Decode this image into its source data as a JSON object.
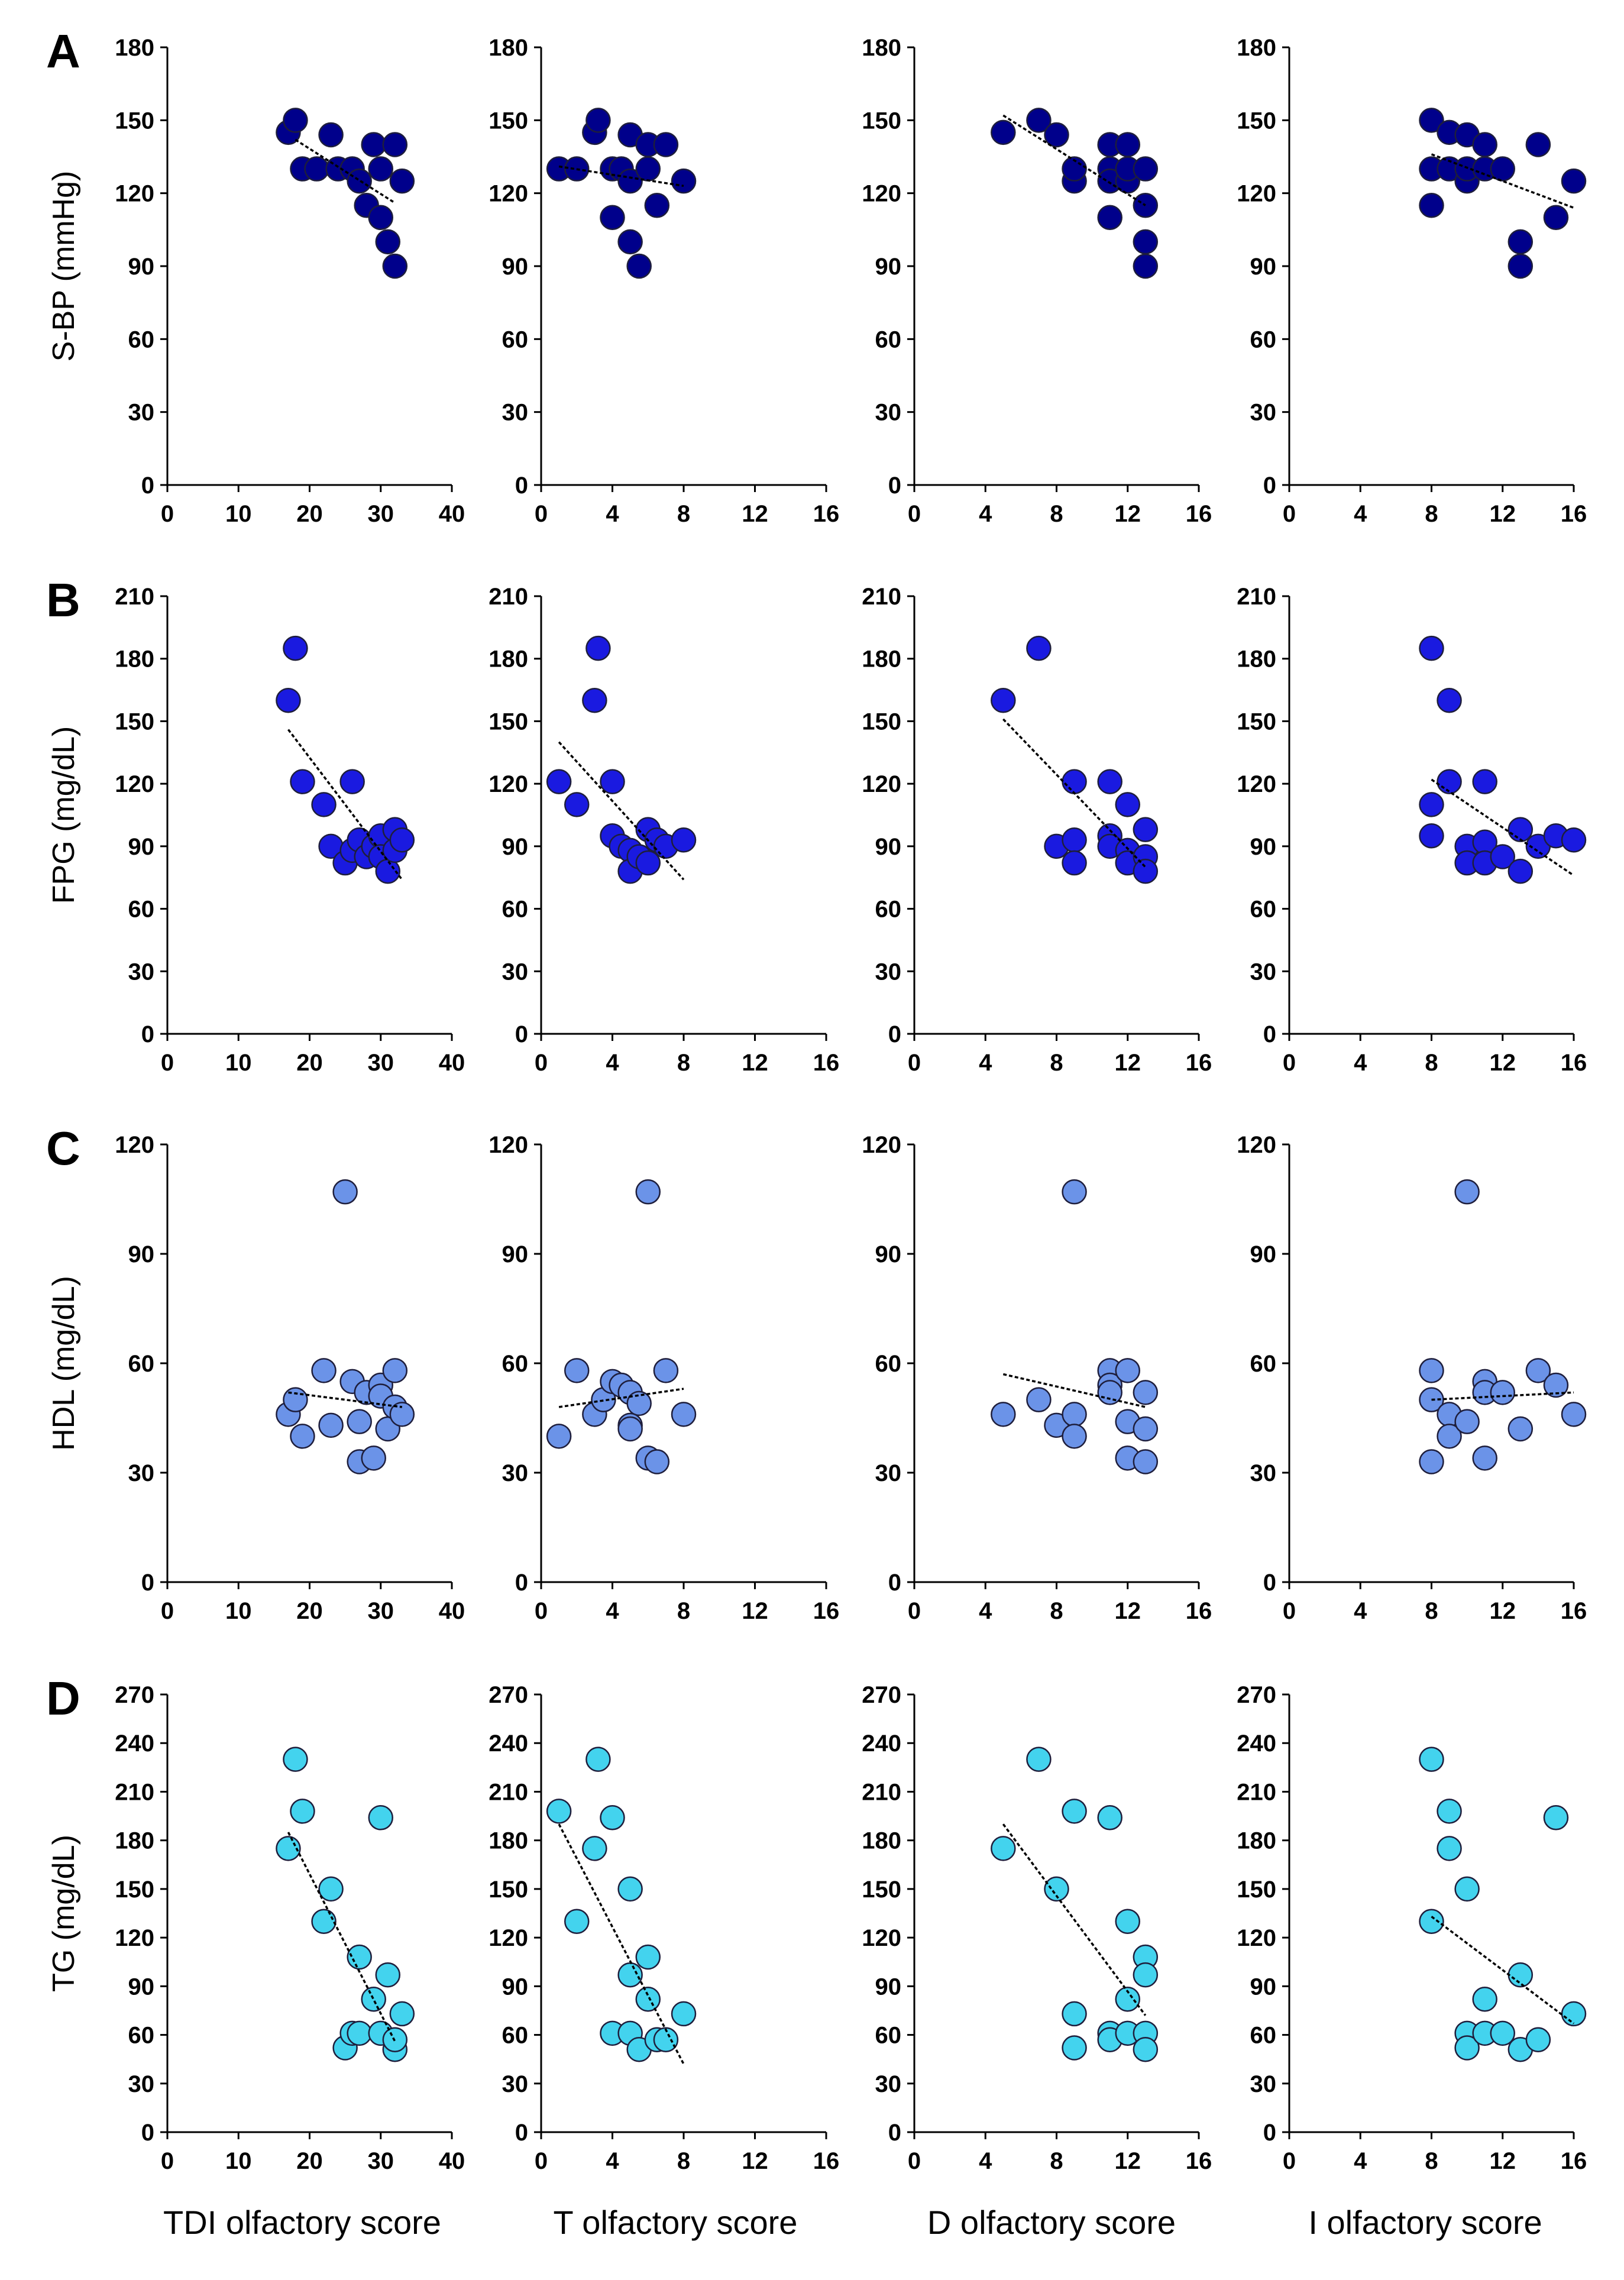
{
  "chart_data": {
    "type": "scatter",
    "grid": false,
    "x_columns": [
      {
        "xlabel": "TDI olfactory score",
        "xlim": [
          0,
          40
        ],
        "xticks": [
          0,
          10,
          20,
          30,
          40
        ]
      },
      {
        "xlabel": "T olfactory score",
        "xlim": [
          0,
          16
        ],
        "xticks": [
          0,
          4,
          8,
          12,
          16
        ]
      },
      {
        "xlabel": "D olfactory score",
        "xlim": [
          0,
          16
        ],
        "xticks": [
          0,
          4,
          8,
          12,
          16
        ]
      },
      {
        "xlabel": "I olfactory score",
        "xlim": [
          0,
          16
        ],
        "xticks": [
          0,
          4,
          8,
          12,
          16
        ]
      }
    ],
    "rows": [
      {
        "panel": "A",
        "ylabel": "S-BP (mmHg)",
        "ylim": [
          0,
          180
        ],
        "yticks": [
          0,
          30,
          60,
          90,
          120,
          150,
          180
        ],
        "color": "#00008b",
        "plots": [
          {
            "x": [
              17,
              18,
              19,
              21,
              23,
              24,
              26,
              27,
              28,
              29,
              30,
              30,
              31,
              32,
              32,
              33
            ],
            "y": [
              145,
              150,
              130,
              130,
              144,
              130,
              130,
              125,
              115,
              140,
              110,
              130,
              100,
              90,
              140,
              125
            ],
            "trend": [
              [
                18,
                142
              ],
              [
                32,
                116
              ]
            ]
          },
          {
            "x": [
              1,
              2,
              3,
              3.2,
              4,
              4,
              4.5,
              5,
              5,
              5,
              5.5,
              6,
              6,
              6.5,
              7,
              8
            ],
            "y": [
              130,
              130,
              145,
              150,
              110,
              130,
              130,
              144,
              100,
              125,
              90,
              130,
              140,
              115,
              140,
              125
            ],
            "trend": [
              [
                1,
                131
              ],
              [
                8,
                123
              ]
            ]
          },
          {
            "x": [
              5,
              7,
              8,
              9,
              9,
              11,
              11,
              11,
              11,
              12,
              12,
              12,
              13,
              13,
              13,
              13
            ],
            "y": [
              145,
              150,
              144,
              125,
              130,
              110,
              130,
              140,
              125,
              140,
              125,
              130,
              90,
              100,
              115,
              130
            ],
            "trend": [
              [
                5,
                152
              ],
              [
                13,
                115
              ]
            ]
          },
          {
            "x": [
              8,
              8,
              8,
              9,
              9,
              10,
              10,
              10,
              11,
              11,
              12,
              13,
              13,
              14,
              15,
              16
            ],
            "y": [
              130,
              150,
              115,
              145,
              130,
              144,
              125,
              130,
              140,
              130,
              130,
              100,
              90,
              140,
              110,
              125
            ],
            "trend": [
              [
                8,
                136
              ],
              [
                16,
                114
              ]
            ]
          }
        ]
      },
      {
        "panel": "B",
        "ylabel": "FPG (mg/dL)",
        "ylim": [
          0,
          210
        ],
        "yticks": [
          0,
          30,
          60,
          90,
          120,
          150,
          180,
          210
        ],
        "color": "#1a1ae0",
        "plots": [
          {
            "x": [
              17,
              18,
              19,
              22,
              23,
              25,
              26,
              26,
              27,
              28,
              29,
              30,
              30,
              31,
              32,
              32,
              33
            ],
            "y": [
              160,
              185,
              121,
              110,
              90,
              82,
              121,
              88,
              93,
              85,
              90,
              95,
              85,
              78,
              98,
              88,
              93
            ],
            "trend": [
              [
                17,
                146
              ],
              [
                33,
                74
              ]
            ]
          },
          {
            "x": [
              1,
              2,
              3,
              3.2,
              4,
              4,
              4.5,
              5,
              5,
              5.5,
              6,
              6,
              6.5,
              7,
              8
            ],
            "y": [
              121,
              110,
              160,
              185,
              121,
              95,
              90,
              88,
              78,
              85,
              98,
              82,
              93,
              90,
              93
            ],
            "trend": [
              [
                1,
                140
              ],
              [
                8,
                74
              ]
            ]
          },
          {
            "x": [
              5,
              7,
              8,
              9,
              9,
              9,
              11,
              11,
              11,
              12,
              12,
              12,
              13,
              13,
              13
            ],
            "y": [
              160,
              185,
              90,
              121,
              93,
              82,
              121,
              95,
              90,
              110,
              88,
              82,
              98,
              85,
              78
            ],
            "trend": [
              [
                5,
                151
              ],
              [
                13,
                80
              ]
            ]
          },
          {
            "x": [
              8,
              8,
              8,
              9,
              9,
              10,
              10,
              11,
              11,
              11,
              12,
              13,
              13,
              14,
              15,
              16
            ],
            "y": [
              185,
              110,
              95,
              160,
              121,
              90,
              82,
              121,
              92,
              82,
              85,
              98,
              78,
              90,
              95,
              93
            ],
            "trend": [
              [
                8,
                122
              ],
              [
                16,
                76
              ]
            ]
          }
        ]
      },
      {
        "panel": "C",
        "ylabel": "HDL (mg/dL)",
        "ylim": [
          0,
          120
        ],
        "yticks": [
          0,
          30,
          60,
          90,
          120
        ],
        "color": "#6b93e8",
        "plots": [
          {
            "x": [
              17,
              18,
              19,
              22,
              23,
              25,
              26,
              27,
              27,
              28,
              29,
              30,
              30,
              31,
              32,
              32,
              33
            ],
            "y": [
              46,
              50,
              40,
              58,
              43,
              107,
              55,
              44,
              33,
              52,
              34,
              54,
              51,
              42,
              58,
              48,
              46
            ],
            "trend": [
              [
                17,
                52
              ],
              [
                33,
                48
              ]
            ]
          },
          {
            "x": [
              1,
              2,
              3,
              3.5,
              4,
              4.5,
              5,
              5,
              5,
              5.5,
              6,
              6,
              6.5,
              7,
              8
            ],
            "y": [
              40,
              58,
              46,
              50,
              55,
              54,
              52,
              43,
              42,
              49,
              107,
              34,
              33,
              58,
              46
            ],
            "trend": [
              [
                1,
                48
              ],
              [
                8,
                53
              ]
            ]
          },
          {
            "x": [
              5,
              7,
              8,
              9,
              9,
              9,
              11,
              11,
              11,
              12,
              12,
              12,
              13,
              13,
              13
            ],
            "y": [
              46,
              50,
              43,
              107,
              46,
              40,
              58,
              54,
              52,
              58,
              44,
              34,
              52,
              42,
              33
            ],
            "trend": [
              [
                5,
                57
              ],
              [
                13,
                48
              ]
            ]
          },
          {
            "x": [
              8,
              8,
              8,
              9,
              9,
              10,
              10,
              11,
              11,
              11,
              12,
              13,
              14,
              15,
              16
            ],
            "y": [
              58,
              50,
              33,
              46,
              40,
              107,
              44,
              55,
              52,
              34,
              52,
              42,
              58,
              54,
              46
            ],
            "trend": [
              [
                8,
                50
              ],
              [
                16,
                52
              ]
            ]
          }
        ]
      },
      {
        "panel": "D",
        "ylabel": "TG (mg/dL)",
        "ylim": [
          0,
          270
        ],
        "yticks": [
          0,
          30,
          60,
          90,
          120,
          150,
          180,
          210,
          240,
          270
        ],
        "color": "#43d3ee",
        "plots": [
          {
            "x": [
              17,
              18,
              19,
              22,
              23,
              25,
              26,
              27,
              27,
              29,
              30,
              30,
              31,
              32,
              32,
              33
            ],
            "y": [
              175,
              230,
              198,
              130,
              150,
              52,
              61,
              108,
              61,
              82,
              194,
              61,
              97,
              51,
              57,
              73
            ],
            "trend": [
              [
                17,
                185
              ],
              [
                32,
                56
              ]
            ]
          },
          {
            "x": [
              1,
              2,
              3,
              3.2,
              4,
              4,
              5,
              5,
              5,
              5.5,
              6,
              6,
              6.5,
              7,
              8
            ],
            "y": [
              198,
              130,
              175,
              230,
              194,
              61,
              150,
              97,
              61,
              51,
              108,
              82,
              57,
              57,
              73
            ],
            "trend": [
              [
                1,
                190
              ],
              [
                8,
                42
              ]
            ]
          },
          {
            "x": [
              5,
              7,
              8,
              9,
              9,
              9,
              11,
              11,
              11,
              12,
              12,
              12,
              13,
              13,
              13,
              13
            ],
            "y": [
              175,
              230,
              150,
              198,
              73,
              52,
              194,
              61,
              57,
              130,
              82,
              61,
              108,
              97,
              61,
              51
            ],
            "trend": [
              [
                5,
                190
              ],
              [
                13,
                72
              ]
            ]
          },
          {
            "x": [
              8,
              8,
              9,
              9,
              10,
              10,
              10,
              11,
              11,
              12,
              13,
              13,
              14,
              15,
              16
            ],
            "y": [
              230,
              130,
              198,
              175,
              150,
              61,
              52,
              82,
              61,
              61,
              97,
              51,
              57,
              194,
              73
            ],
            "trend": [
              [
                8,
                133
              ],
              [
                16,
                67
              ]
            ]
          }
        ]
      }
    ]
  }
}
